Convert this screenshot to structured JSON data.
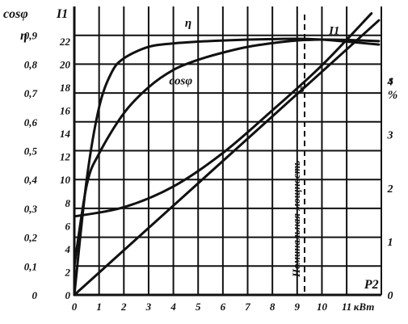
{
  "chart_data": {
    "type": "line",
    "title": "",
    "xlabel": "кВт",
    "x_axis_name": "P2",
    "ylabel_left_outer": "cosφ",
    "ylabel_left_outer_2": "η",
    "ylabel_left_inner": "I1",
    "ylabel_right": "s",
    "ylabel_right_unit": "%",
    "annotation_vertical": "Номинальная мощность",
    "nominal_power_x": 9.3,
    "xlim": [
      0,
      12.4
    ],
    "ylim_left_outer": [
      0,
      1.0
    ],
    "ylim_left_inner": [
      0,
      25
    ],
    "ylim_right": [
      0,
      5.4
    ],
    "grid": true,
    "x_ticks": [
      "0",
      "1",
      "2",
      "3",
      "4",
      "5",
      "6",
      "7",
      "8",
      "9",
      "10",
      "11"
    ],
    "left_outer_ticks": [
      "0",
      "0,1",
      "0,2",
      "0,3",
      "0,4",
      "0,5",
      "0,6",
      "0,7",
      "0,8",
      "0,9"
    ],
    "left_inner_ticks": [
      "0",
      "2",
      "4",
      "6",
      "8",
      "10",
      "12",
      "14",
      "16",
      "18",
      "20",
      "22"
    ],
    "right_ticks": [
      "0",
      "1",
      "2",
      "3",
      "4"
    ],
    "series": [
      {
        "name": "I1",
        "axis": "left_inner",
        "x": [
          0,
          2,
          4,
          6,
          8,
          10,
          12
        ],
        "y": [
          6.8,
          7.6,
          9.4,
          12.3,
          16.0,
          19.9,
          24.4
        ]
      },
      {
        "name": "η",
        "axis": "left_outer",
        "x": [
          0,
          0.5,
          1,
          1.5,
          2,
          3,
          4,
          5,
          6,
          7,
          8,
          9,
          10,
          11,
          12.3
        ],
        "y": [
          0,
          0.4,
          0.65,
          0.77,
          0.82,
          0.86,
          0.872,
          0.878,
          0.882,
          0.885,
          0.887,
          0.888,
          0.885,
          0.878,
          0.868
        ]
      },
      {
        "name": "cosφ",
        "axis": "left_outer",
        "x": [
          0,
          0.5,
          1,
          2,
          3,
          4,
          5,
          6,
          7,
          8,
          9,
          10,
          11,
          12.3
        ],
        "y": [
          0.1,
          0.38,
          0.49,
          0.63,
          0.72,
          0.78,
          0.815,
          0.84,
          0.86,
          0.873,
          0.882,
          0.885,
          0.884,
          0.88
        ]
      },
      {
        "name": "s",
        "axis": "right",
        "x": [
          0,
          12.3
        ],
        "y": [
          0,
          5.14
        ]
      }
    ]
  }
}
